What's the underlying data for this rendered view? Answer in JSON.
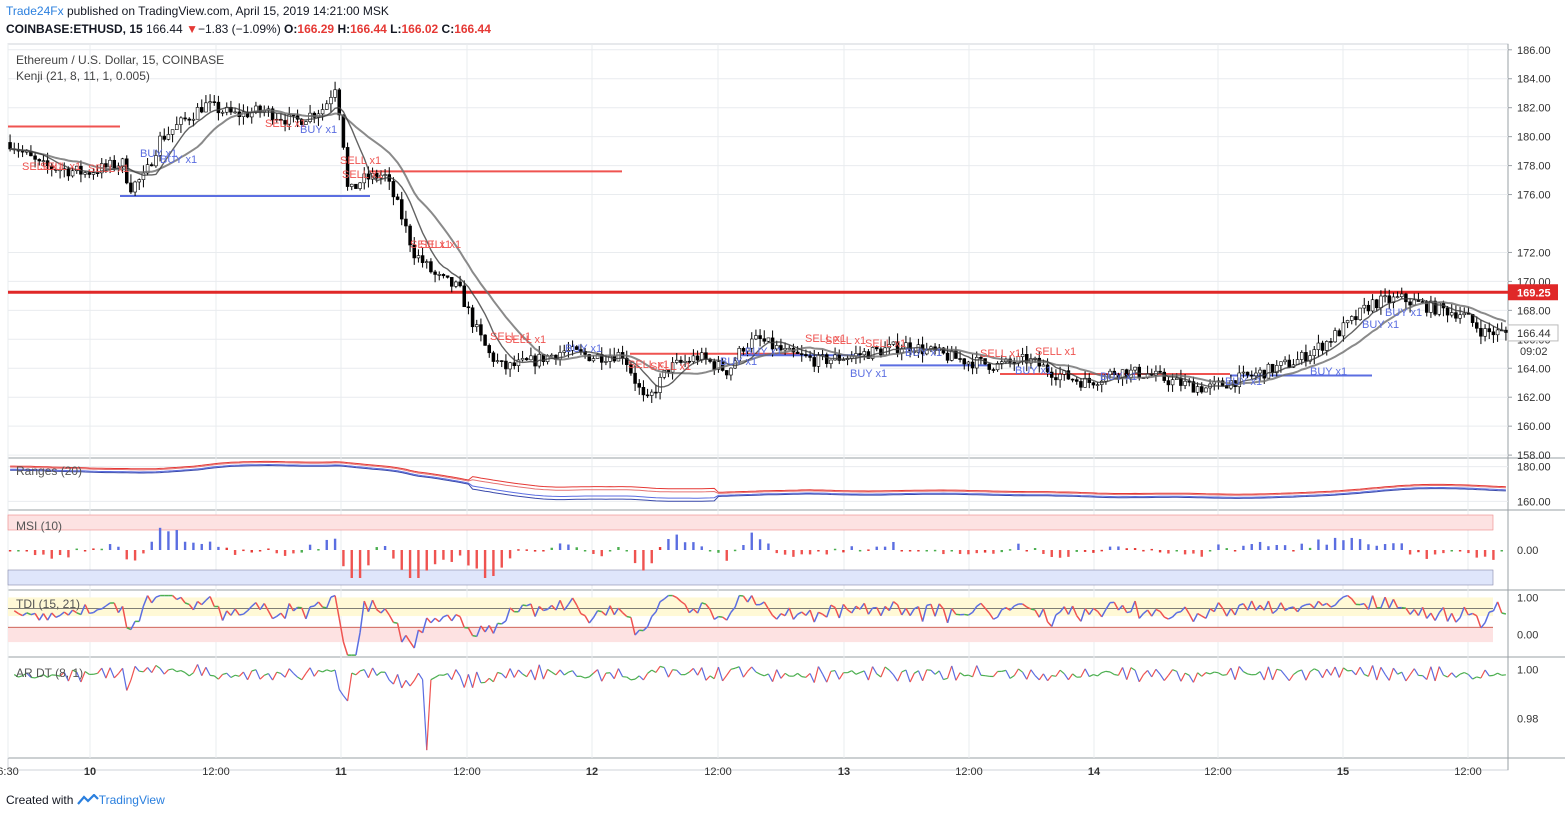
{
  "header": {
    "publisher": "Trade24Fx",
    "published_text": "published on TradingView.com, April 15, 2019 14:21:00 MSK",
    "symbol": "COINBASE:ETHUSD, 15",
    "last": "166.44",
    "change": "−1.83 (−1.09%)",
    "o_label": "O:",
    "o_value": "166.29",
    "h_label": "H:",
    "h_value": "166.44",
    "l_label": "L:",
    "l_value": "166.02",
    "c_label": "C:",
    "c_value": "166.44",
    "title": "Ethereum / U.S. Dollar, 15, COINBASE",
    "study": "Kenji (21, 8, 11, 1, 0.005)"
  },
  "footer": {
    "created_with": "Created with",
    "brand": "TradingView"
  },
  "colors": {
    "up": "#2196f3",
    "down": "#e53935",
    "grid": "#e9ecef",
    "buy": "#5b6ee1",
    "sell": "#ef5350"
  },
  "chart_data": [
    {
      "type": "candlestick",
      "title": "Ethereum / U.S. Dollar, 15, COINBASE",
      "x_ticks": [
        "6:30",
        "10",
        "12:00",
        "11",
        "12:00",
        "12",
        "12:00",
        "13",
        "12:00",
        "14",
        "12:00",
        "15",
        "12:00"
      ],
      "y_ticks": [
        "186.00",
        "184.00",
        "182.00",
        "180.00",
        "178.00",
        "176.00",
        "172.00",
        "170.00",
        "168.00",
        "166.00",
        "164.00",
        "162.00",
        "160.00",
        "158.00"
      ],
      "ylim": [
        157.8,
        186.4
      ],
      "price_label": "169.25",
      "last_label": "166.44",
      "countdown": "09:02",
      "close_path": [
        [
          0,
          179.6
        ],
        [
          0.02,
          178.0
        ],
        [
          0.05,
          177.5
        ],
        [
          0.075,
          178.2
        ],
        [
          0.08,
          176.5
        ],
        [
          0.09,
          177.2
        ],
        [
          0.1,
          179.8
        ],
        [
          0.115,
          181.0
        ],
        [
          0.13,
          182.2
        ],
        [
          0.15,
          181.5
        ],
        [
          0.17,
          181.8
        ],
        [
          0.19,
          181.0
        ],
        [
          0.21,
          182.0
        ],
        [
          0.2175,
          183.6
        ],
        [
          0.222,
          180.5
        ],
        [
          0.226,
          176.0
        ],
        [
          0.235,
          177.0
        ],
        [
          0.25,
          177.4
        ],
        [
          0.26,
          175.0
        ],
        [
          0.27,
          172.0
        ],
        [
          0.285,
          170.3
        ],
        [
          0.3,
          169.5
        ],
        [
          0.31,
          167.0
        ],
        [
          0.32,
          165.0
        ],
        [
          0.33,
          164.0
        ],
        [
          0.35,
          164.5
        ],
        [
          0.37,
          165.2
        ],
        [
          0.39,
          164.8
        ],
        [
          0.41,
          165.0
        ],
        [
          0.425,
          161.5
        ],
        [
          0.44,
          164.0
        ],
        [
          0.46,
          164.8
        ],
        [
          0.48,
          163.8
        ],
        [
          0.49,
          165.5
        ],
        [
          0.5,
          166.0
        ],
        [
          0.52,
          165.0
        ],
        [
          0.54,
          164.5
        ],
        [
          0.56,
          164.8
        ],
        [
          0.58,
          165.2
        ],
        [
          0.6,
          165.6
        ],
        [
          0.62,
          165.0
        ],
        [
          0.64,
          164.5
        ],
        [
          0.66,
          164.2
        ],
        [
          0.68,
          164.6
        ],
        [
          0.7,
          163.6
        ],
        [
          0.72,
          163.0
        ],
        [
          0.74,
          163.8
        ],
        [
          0.76,
          163.6
        ],
        [
          0.78,
          163.0
        ],
        [
          0.8,
          162.6
        ],
        [
          0.82,
          163.2
        ],
        [
          0.84,
          163.8
        ],
        [
          0.86,
          164.5
        ],
        [
          0.88,
          165.8
        ],
        [
          0.9,
          167.5
        ],
        [
          0.91,
          168.5
        ],
        [
          0.93,
          168.8
        ],
        [
          0.95,
          168.2
        ],
        [
          0.97,
          167.8
        ],
        [
          0.985,
          166.5
        ],
        [
          1.0,
          166.44
        ]
      ],
      "signal_labels": {
        "sell": [
          "SELL x1",
          "SELL x1",
          "SELL x1",
          "SELL x1",
          "SELL x1",
          "SELL x1",
          "SELL x1",
          "SELL x1",
          "SELL x1",
          "SELL x1",
          "SELL x1",
          "SELL x1",
          "SELL x1",
          "SELL x1",
          "SELL x1",
          "SELL x1",
          "SELL x1"
        ],
        "buy": [
          "BUY x1",
          "BUY x1",
          "BUY x1",
          "BUY x1",
          "BUY x1",
          "BUY x1",
          "BUY x1",
          "BUY x1",
          "BUY x1",
          "BUY x1",
          "BUY x1",
          "BUY x1",
          "BUY x1",
          "BUY x1"
        ]
      }
    },
    {
      "type": "line",
      "title": "Ranges (20)",
      "y_ticks": [
        "180.00",
        "160.00"
      ],
      "ylim": [
        155,
        185
      ]
    },
    {
      "type": "bar",
      "title": "MSI (10)",
      "y_ticks": [
        "0.00"
      ]
    },
    {
      "type": "line",
      "title": "TDI (15, 21)",
      "y_ticks": [
        "1.00",
        "0.00"
      ],
      "ylim": [
        -0.6,
        1.2
      ]
    },
    {
      "type": "line",
      "title": "AR DT (8, 1)",
      "y_ticks": [
        "1.00",
        "0.98"
      ],
      "ylim": [
        0.965,
        1.005
      ]
    }
  ]
}
